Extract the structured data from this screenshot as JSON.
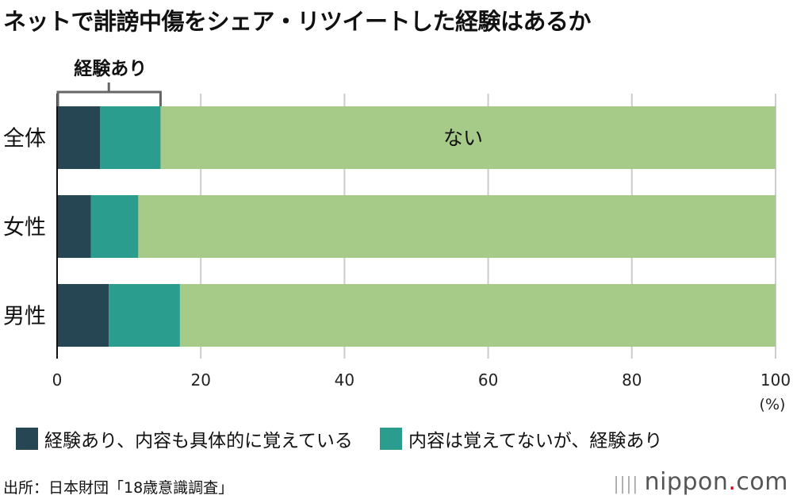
{
  "title": "ネットで誹謗中傷をシェア・リツイートした経験はあるか",
  "chart_data": {
    "type": "bar",
    "orientation": "horizontal",
    "stacked": true,
    "categories": [
      "全体",
      "女性",
      "男性"
    ],
    "series": [
      {
        "name": "経験あり、内容も具体的に覚えている",
        "color": "#264653",
        "values": [
          6.0,
          4.7,
          7.2
        ]
      },
      {
        "name": "内容は覚えてないが、経験あり",
        "color": "#2a9d8f",
        "values": [
          8.4,
          6.6,
          9.9
        ]
      },
      {
        "name": "ない",
        "color": "#a6cb88",
        "values": [
          85.6,
          88.7,
          82.9
        ]
      }
    ],
    "xlim": [
      0,
      100
    ],
    "xticks": [
      "0",
      "20",
      "40",
      "60",
      "80",
      "100"
    ],
    "xunit": "(%)",
    "grid": true,
    "legend": "bottom",
    "annotations": {
      "bracket_label": "経験あり",
      "inbar_label": "ない"
    }
  },
  "source": "出所：日本財団「18歳意識調査」",
  "logo": {
    "name": "nippon",
    "dot": ".",
    "suffix": "com"
  }
}
